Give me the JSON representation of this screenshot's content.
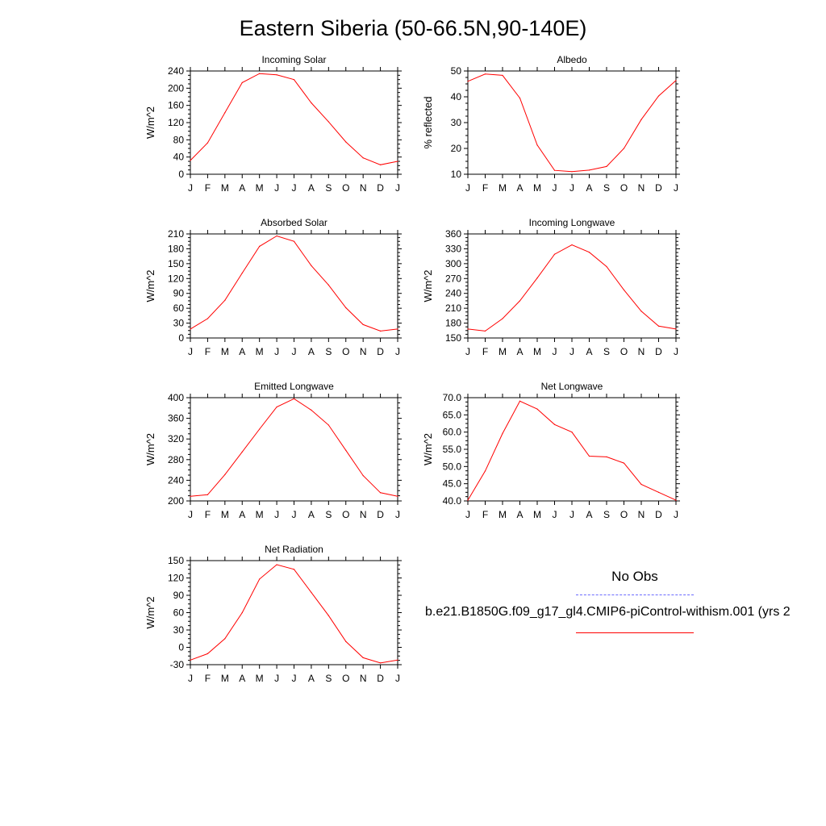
{
  "title": "Eastern Siberia (50-66.5N,90-140E)",
  "legend": {
    "obs_label": "No Obs",
    "model_label": "b.e21.B1850G.f09_g17_gl4.CMIP6-piControl-withism.001 (yrs 2",
    "obs_color": "#6b6bff",
    "model_color": "#ff0000"
  },
  "chart_data": [
    {
      "type": "line",
      "title": "Incoming Solar",
      "ylabel": "W/m^2",
      "categories": [
        "J",
        "F",
        "M",
        "A",
        "M",
        "J",
        "J",
        "A",
        "S",
        "O",
        "N",
        "D",
        "J"
      ],
      "ylim": [
        0,
        240
      ],
      "yticks": [
        "0",
        "40",
        "80",
        "120",
        "160",
        "200",
        "240"
      ],
      "series": [
        {
          "values": [
            32,
            73,
            143,
            213,
            234,
            231,
            220,
            166,
            122,
            75,
            38,
            22,
            30
          ]
        }
      ]
    },
    {
      "type": "line",
      "title": "Albedo",
      "ylabel": "% reflected",
      "categories": [
        "J",
        "F",
        "M",
        "A",
        "M",
        "J",
        "J",
        "A",
        "S",
        "O",
        "N",
        "D",
        "J"
      ],
      "ylim": [
        10,
        50
      ],
      "yticks": [
        "10",
        "20",
        "30",
        "40",
        "50"
      ],
      "series": [
        {
          "values": [
            46,
            48.8,
            48.3,
            39.5,
            21.3,
            11.5,
            11.0,
            11.6,
            13.0,
            20.0,
            31.2,
            40.3,
            46.3
          ]
        }
      ]
    },
    {
      "type": "line",
      "title": "Absorbed Solar",
      "ylabel": "W/m^2",
      "categories": [
        "J",
        "F",
        "M",
        "A",
        "M",
        "J",
        "J",
        "A",
        "S",
        "O",
        "N",
        "D",
        "J"
      ],
      "ylim": [
        0,
        210
      ],
      "yticks": [
        "0",
        "30",
        "60",
        "90",
        "120",
        "150",
        "180",
        "210"
      ],
      "series": [
        {
          "values": [
            18,
            39,
            76,
            131,
            185,
            206,
            195,
            146,
            107,
            61,
            27,
            14,
            18
          ]
        }
      ]
    },
    {
      "type": "line",
      "title": "Incoming Longwave",
      "ylabel": "W/m^2",
      "categories": [
        "J",
        "F",
        "M",
        "A",
        "M",
        "J",
        "J",
        "A",
        "S",
        "O",
        "N",
        "D",
        "J"
      ],
      "ylim": [
        150,
        360
      ],
      "yticks": [
        "150",
        "180",
        "210",
        "240",
        "270",
        "300",
        "330",
        "360"
      ],
      "series": [
        {
          "values": [
            168,
            164,
            189,
            225,
            271,
            319,
            338,
            323,
            294,
            247,
            204,
            174,
            168
          ]
        }
      ]
    },
    {
      "type": "line",
      "title": "Emitted Longwave",
      "ylabel": "W/m^2",
      "categories": [
        "J",
        "F",
        "M",
        "A",
        "M",
        "J",
        "J",
        "A",
        "S",
        "O",
        "N",
        "D",
        "J"
      ],
      "ylim": [
        200,
        400
      ],
      "yticks": [
        "200",
        "240",
        "280",
        "320",
        "360",
        "400"
      ],
      "series": [
        {
          "values": [
            209,
            212,
            251,
            295,
            339,
            382,
            398,
            376,
            347,
            298,
            249,
            216,
            209
          ]
        }
      ]
    },
    {
      "type": "line",
      "title": "Net Longwave",
      "ylabel": "W/m^2",
      "categories": [
        "J",
        "F",
        "M",
        "A",
        "M",
        "J",
        "J",
        "A",
        "S",
        "O",
        "N",
        "D",
        "J"
      ],
      "ylim": [
        40,
        70
      ],
      "yticks": [
        "40.0",
        "45.0",
        "50.0",
        "55.0",
        "60.0",
        "65.0",
        "70.0"
      ],
      "series": [
        {
          "values": [
            40.2,
            48.7,
            59.6,
            69.0,
            66.7,
            62.2,
            60.0,
            53.0,
            52.8,
            51.0,
            44.8,
            42.5,
            40.2
          ]
        }
      ]
    },
    {
      "type": "line",
      "title": "Net Radiation",
      "ylabel": "W/m^2",
      "categories": [
        "J",
        "F",
        "M",
        "A",
        "M",
        "J",
        "J",
        "A",
        "S",
        "O",
        "N",
        "D",
        "J"
      ],
      "ylim": [
        -30,
        150
      ],
      "yticks": [
        "-30",
        "0",
        "30",
        "60",
        "90",
        "120",
        "150"
      ],
      "series": [
        {
          "values": [
            -22,
            -11,
            15,
            60,
            118,
            143,
            135,
            95,
            55,
            10,
            -18,
            -27,
            -22
          ]
        }
      ]
    }
  ]
}
